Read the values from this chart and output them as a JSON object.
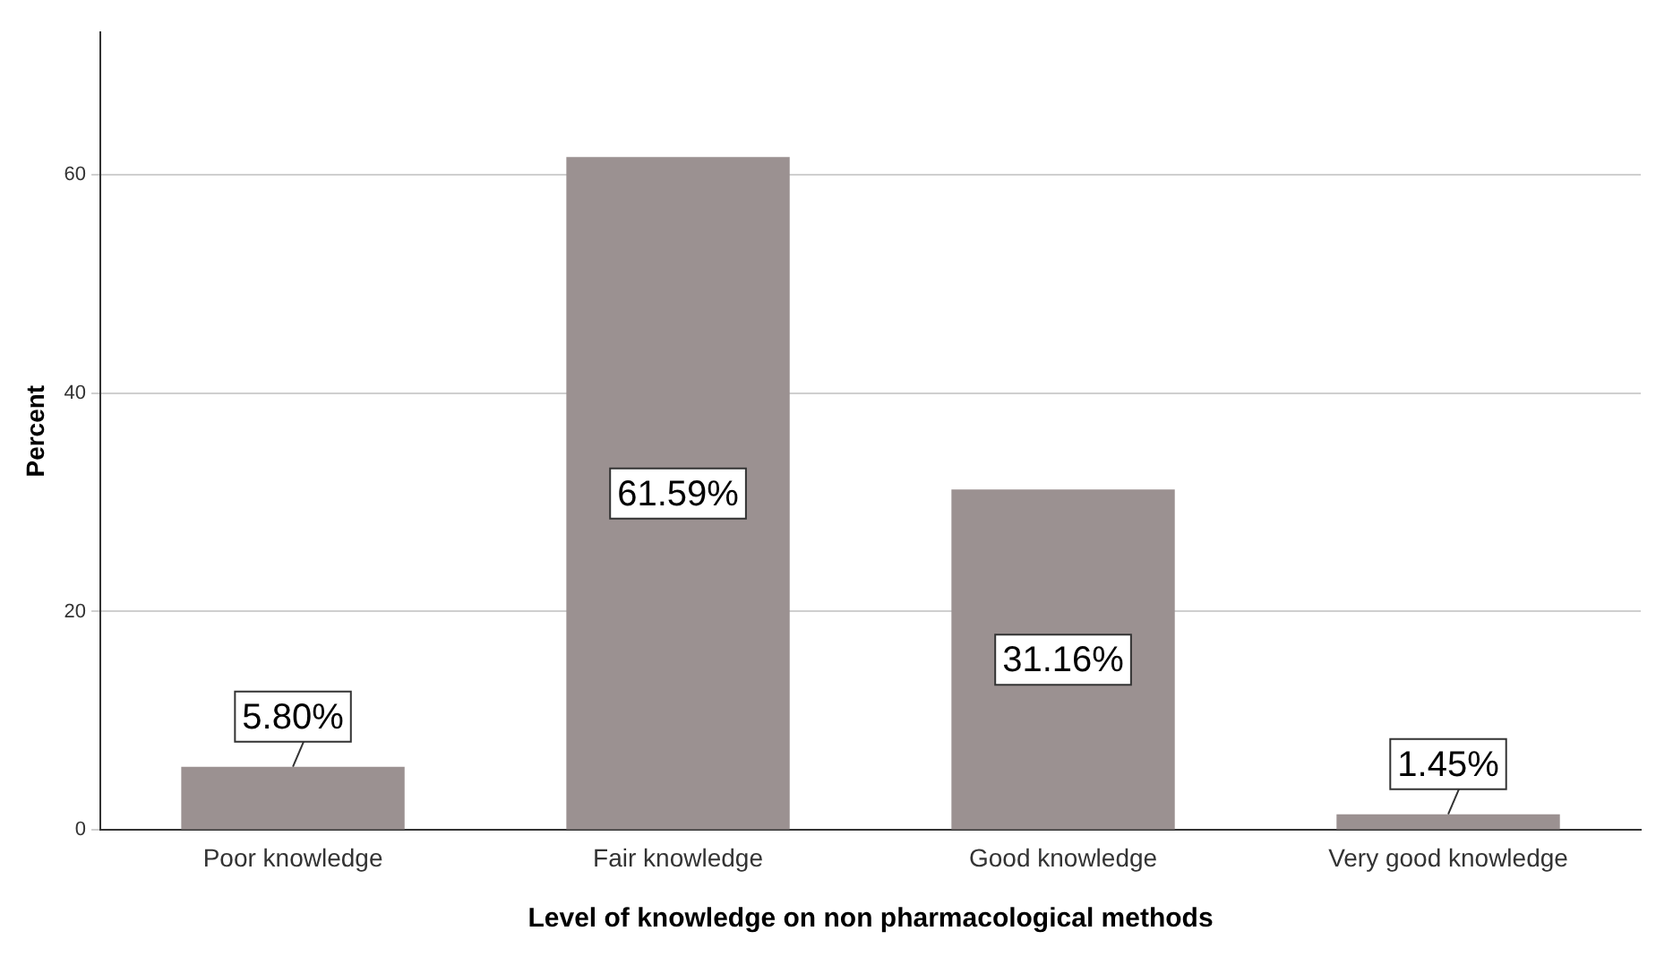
{
  "chart_data": {
    "type": "bar",
    "xlabel": "Level of knowledge on non pharmacological methods",
    "ylabel": "Percent",
    "categories": [
      "Poor knowledge",
      "Fair knowledge",
      "Good knowledge",
      "Very good knowledge"
    ],
    "values": [
      5.8,
      61.59,
      31.16,
      1.45
    ],
    "value_labels": [
      "5.80%",
      "61.59%",
      "31.16%",
      "1.45%"
    ],
    "color": "#9b9191",
    "ylim": [
      0,
      73
    ],
    "yticks": [
      0,
      20,
      40,
      60
    ],
    "grid": "y",
    "legend": false
  }
}
